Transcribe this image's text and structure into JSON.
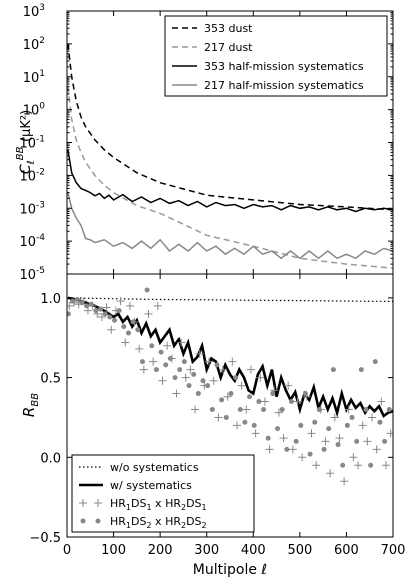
{
  "chart_data": [
    {
      "type": "line",
      "ylabel": "C_ℓ^BB (μK²)",
      "ylabel_parts": {
        "base": "C",
        "sup": "BB",
        "sub": "ℓ",
        "unit": "(μK²)"
      },
      "yscale": "log",
      "ylim": [
        1e-05,
        1000
      ],
      "xlim": [
        0,
        700
      ],
      "ytick_labels": [
        {
          "base": "10",
          "exp": "3"
        },
        {
          "base": "10",
          "exp": "2"
        },
        {
          "base": "10",
          "exp": "1"
        },
        {
          "base": "10",
          "exp": "0"
        },
        {
          "base": "10",
          "exp": "-1"
        },
        {
          "base": "10",
          "exp": "-2"
        },
        {
          "base": "10",
          "exp": "-3"
        },
        {
          "base": "10",
          "exp": "-4"
        },
        {
          "base": "10",
          "exp": "-5"
        }
      ],
      "legend_position": "top-right",
      "series": [
        {
          "name": "353 dust",
          "color": "#000000",
          "style": "dashed",
          "x": [
            2,
            10,
            20,
            30,
            40,
            60,
            80,
            100,
            150,
            200,
            300,
            400,
            500,
            600,
            700
          ],
          "y": [
            100,
            10,
            1.8,
            0.6,
            0.3,
            0.12,
            0.06,
            0.035,
            0.012,
            0.006,
            0.0025,
            0.0018,
            0.0013,
            0.0011,
            0.0009
          ]
        },
        {
          "name": "217 dust",
          "color": "#999999",
          "style": "dashed",
          "x": [
            2,
            10,
            20,
            30,
            40,
            60,
            80,
            100,
            150,
            200,
            300,
            400,
            500,
            600,
            700
          ],
          "y": [
            5,
            0.5,
            0.12,
            0.05,
            0.025,
            0.01,
            0.005,
            0.003,
            0.0012,
            0.0007,
            0.00015,
            7e-05,
            3e-05,
            2e-05,
            1.5e-05
          ]
        },
        {
          "name": "353 half-mission systematics",
          "color": "#000000",
          "style": "solid",
          "x": [
            2,
            10,
            20,
            30,
            40,
            50,
            60,
            70,
            80,
            90,
            100,
            120,
            140,
            160,
            180,
            200,
            220,
            240,
            260,
            280,
            300,
            320,
            340,
            360,
            380,
            400,
            420,
            440,
            460,
            480,
            500,
            520,
            540,
            560,
            580,
            600,
            620,
            640,
            660,
            680,
            700
          ],
          "y": [
            0.06,
            0.012,
            0.006,
            0.004,
            0.0035,
            0.003,
            0.0024,
            0.0028,
            0.002,
            0.0025,
            0.0018,
            0.0026,
            0.0016,
            0.0022,
            0.0015,
            0.002,
            0.0014,
            0.0017,
            0.0012,
            0.0016,
            0.0011,
            0.0015,
            0.0012,
            0.0013,
            0.001,
            0.0013,
            0.0011,
            0.0012,
            0.0009,
            0.0012,
            0.001,
            0.0011,
            0.0009,
            0.0011,
            0.0009,
            0.001,
            0.0008,
            0.001,
            0.0009,
            0.001,
            0.0009
          ]
        },
        {
          "name": "217 half-mission systematics",
          "color": "#888888",
          "style": "solid",
          "x": [
            2,
            10,
            20,
            30,
            40,
            50,
            60,
            80,
            100,
            120,
            140,
            160,
            180,
            200,
            220,
            240,
            260,
            280,
            300,
            320,
            340,
            360,
            380,
            400,
            420,
            440,
            460,
            480,
            500,
            520,
            540,
            560,
            580,
            600,
            620,
            640,
            660,
            680,
            700
          ],
          "y": [
            0.003,
            0.001,
            0.0005,
            0.0003,
            0.00012,
            0.00011,
            9e-05,
            0.00011,
            7e-05,
            9e-05,
            6e-05,
            0.0001,
            6e-05,
            0.00011,
            5e-05,
            8e-05,
            5e-05,
            9e-05,
            5e-05,
            7e-05,
            4e-05,
            6e-05,
            4e-05,
            7e-05,
            4e-05,
            5e-05,
            3e-05,
            5e-05,
            3e-05,
            5e-05,
            3e-05,
            5e-05,
            3e-05,
            4e-05,
            3e-05,
            5e-05,
            4e-05,
            6e-05,
            5e-05
          ]
        }
      ]
    },
    {
      "type": "line",
      "ylabel": "R_BB",
      "ylabel_parts": {
        "base": "R",
        "sub": "BB"
      },
      "xlabel": "Multipole ℓ",
      "ylim": [
        -0.5,
        1.15
      ],
      "xlim": [
        0,
        700
      ],
      "xticks": [
        0,
        100,
        200,
        300,
        400,
        500,
        600,
        700
      ],
      "xtick_labels": [
        "0",
        "100",
        "200",
        "300",
        "400",
        "500",
        "600",
        "700"
      ],
      "yticks": [
        1.0,
        0.5,
        0.0,
        -0.5
      ],
      "ytick_labels": [
        "1.0",
        "0.5",
        "0.0",
        "−0.5"
      ],
      "legend_position": "bottom-left",
      "series": [
        {
          "name": "w/o systematics",
          "color": "#000000",
          "style": "dotted",
          "x": [
            2,
            100,
            200,
            300,
            400,
            500,
            600,
            700
          ],
          "y": [
            1.0,
            0.995,
            0.99,
            0.988,
            0.985,
            0.983,
            0.98,
            0.978
          ]
        },
        {
          "name": "w/ systematics",
          "color": "#000000",
          "style": "solid-thick",
          "x": [
            2,
            20,
            40,
            60,
            80,
            100,
            110,
            120,
            130,
            140,
            150,
            160,
            170,
            180,
            190,
            200,
            210,
            220,
            230,
            240,
            250,
            260,
            270,
            280,
            290,
            300,
            310,
            320,
            330,
            340,
            350,
            360,
            370,
            380,
            390,
            400,
            410,
            420,
            430,
            440,
            450,
            460,
            470,
            480,
            490,
            500,
            510,
            520,
            530,
            540,
            550,
            560,
            570,
            580,
            590,
            600,
            610,
            620,
            630,
            640,
            650,
            660,
            670,
            680,
            690,
            700
          ],
          "y": [
            1.0,
            0.99,
            0.97,
            0.95,
            0.92,
            0.88,
            0.9,
            0.85,
            0.88,
            0.82,
            0.86,
            0.78,
            0.84,
            0.76,
            0.8,
            0.72,
            0.76,
            0.8,
            0.7,
            0.74,
            0.65,
            0.72,
            0.6,
            0.63,
            0.7,
            0.55,
            0.62,
            0.6,
            0.5,
            0.58,
            0.52,
            0.48,
            0.55,
            0.5,
            0.42,
            0.4,
            0.52,
            0.57,
            0.45,
            0.55,
            0.38,
            0.5,
            0.42,
            0.36,
            0.41,
            0.3,
            0.4,
            0.36,
            0.44,
            0.31,
            0.38,
            0.3,
            0.37,
            0.28,
            0.4,
            0.3,
            0.36,
            0.31,
            0.34,
            0.28,
            0.32,
            0.29,
            0.32,
            0.26,
            0.28,
            0.29
          ]
        },
        {
          "name": "HR1DS1 x HR2DS1",
          "color": "#888888",
          "style": "plus-markers",
          "x": [
            5,
            15,
            25,
            35,
            45,
            55,
            65,
            75,
            85,
            95,
            105,
            115,
            125,
            135,
            145,
            155,
            165,
            175,
            185,
            195,
            205,
            215,
            225,
            235,
            245,
            255,
            265,
            275,
            285,
            295,
            305,
            315,
            325,
            335,
            345,
            355,
            365,
            375,
            385,
            395,
            405,
            415,
            425,
            435,
            445,
            455,
            465,
            475,
            485,
            495,
            505,
            515,
            525,
            535,
            545,
            555,
            565,
            575,
            585,
            595,
            605,
            615,
            625,
            635,
            645,
            655,
            665,
            675,
            685,
            695
          ],
          "y": [
            0.95,
            0.97,
            0.96,
            0.98,
            0.92,
            0.95,
            0.9,
            0.88,
            0.94,
            0.8,
            0.92,
            0.98,
            0.72,
            0.95,
            0.85,
            0.68,
            0.55,
            0.9,
            0.6,
            0.95,
            0.48,
            0.7,
            0.62,
            0.4,
            0.72,
            0.5,
            0.55,
            0.3,
            0.65,
            0.45,
            0.6,
            0.48,
            0.25,
            0.55,
            0.38,
            0.6,
            0.2,
            0.45,
            0.3,
            0.55,
            0.15,
            0.5,
            0.35,
            0.05,
            0.42,
            0.28,
            0.12,
            0.45,
            0.05,
            0.35,
            0.0,
            0.38,
            0.15,
            -0.05,
            0.3,
            0.1,
            -0.1,
            0.25,
            0.12,
            -0.15,
            0.3,
            0.0,
            -0.05,
            0.2,
            0.1,
            0.25,
            0.05,
            0.35,
            -0.05,
            0.15
          ]
        },
        {
          "name": "HR1DS2 x HR2DS2",
          "color": "#888888",
          "style": "dot-markers",
          "x": [
            3,
            12,
            22,
            32,
            42,
            52,
            62,
            72,
            82,
            92,
            102,
            112,
            122,
            132,
            142,
            152,
            162,
            172,
            182,
            192,
            202,
            212,
            222,
            232,
            242,
            252,
            262,
            272,
            282,
            292,
            302,
            312,
            322,
            332,
            342,
            352,
            362,
            372,
            382,
            392,
            402,
            412,
            422,
            432,
            442,
            452,
            462,
            472,
            482,
            492,
            502,
            512,
            522,
            532,
            542,
            552,
            562,
            572,
            582,
            592,
            602,
            612,
            622,
            632,
            642,
            652,
            662,
            672,
            682,
            692
          ],
          "y": [
            0.9,
            0.98,
            0.99,
            0.97,
            0.95,
            0.96,
            0.92,
            0.93,
            0.9,
            0.88,
            0.86,
            0.92,
            0.82,
            0.78,
            0.85,
            0.8,
            0.6,
            1.05,
            0.7,
            0.55,
            0.66,
            0.58,
            0.62,
            0.5,
            0.55,
            0.6,
            0.45,
            0.52,
            0.4,
            0.48,
            0.45,
            0.3,
            0.58,
            0.36,
            0.25,
            0.4,
            0.5,
            0.3,
            0.22,
            0.38,
            0.2,
            0.35,
            0.3,
            0.12,
            0.4,
            0.18,
            0.3,
            0.05,
            0.35,
            0.1,
            0.2,
            0.4,
            0.02,
            0.22,
            0.3,
            0.05,
            0.18,
            0.55,
            0.08,
            -0.05,
            0.2,
            0.25,
            0.1,
            0.55,
            0.3,
            -0.05,
            0.6,
            0.22,
            0.1,
            0.3
          ]
        }
      ]
    }
  ]
}
